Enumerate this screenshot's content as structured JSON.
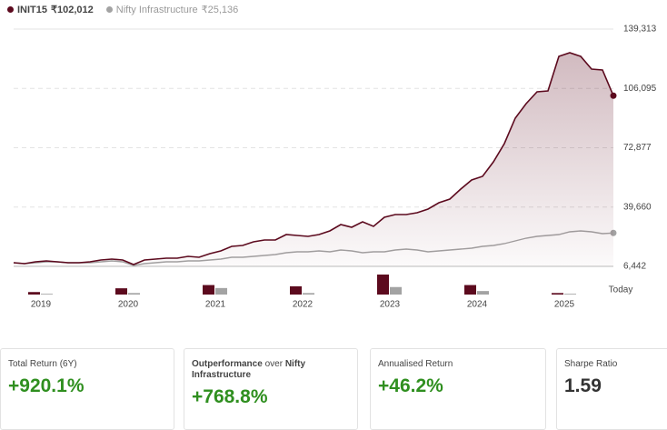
{
  "chart_data": {
    "type": "line",
    "series": [
      {
        "name": "INIT15",
        "value_label": "₹102,012",
        "color": "#5c0a1e",
        "values": [
          8478,
          7969,
          8988,
          9497,
          8988,
          8478,
          8478,
          8988,
          10006,
          10515,
          10006,
          7460,
          10006,
          10515,
          11024,
          11024,
          12042,
          11533,
          13569,
          15097,
          17642,
          18151,
          20188,
          21206,
          21206,
          24261,
          23751,
          23242,
          24261,
          26297,
          29861,
          28333,
          31388,
          28842,
          33933,
          35461,
          35461,
          36479,
          38515,
          42079,
          44115,
          49715,
          54806,
          56843,
          64989,
          75170,
          89425,
          97571,
          104189,
          104698,
          124044,
          126080,
          124044,
          116917,
          116408,
          102012
        ],
        "annual_bars": [
          10,
          25,
          38,
          33,
          80,
          38,
          6
        ]
      },
      {
        "name": "Nifty Infrastructure",
        "value_label": "₹25,136",
        "color": "#a3a3a3",
        "values": [
          8478,
          7969,
          8478,
          8988,
          8988,
          8478,
          8478,
          8478,
          8988,
          9497,
          8988,
          6951,
          7969,
          8478,
          8988,
          8988,
          9497,
          9497,
          10006,
          10515,
          11533,
          11533,
          12042,
          12551,
          13060,
          14079,
          14588,
          14588,
          15097,
          14588,
          15606,
          15097,
          14079,
          14588,
          14588,
          15606,
          16115,
          15606,
          14588,
          15097,
          15606,
          16115,
          16624,
          17642,
          18151,
          19170,
          20697,
          22224,
          23242,
          23751,
          24261,
          25788,
          26297,
          25788,
          24770,
          25136
        ],
        "annual_bars": [
          3,
          6,
          26,
          6,
          30,
          14,
          3
        ]
      }
    ],
    "categories": [
      null,
      null,
      null,
      "2019",
      null,
      null,
      null,
      null,
      null,
      null,
      null,
      "2020",
      null,
      null,
      null,
      null,
      null,
      null,
      null,
      "2021",
      null,
      null,
      null,
      null,
      null,
      null,
      null,
      "2022",
      null,
      null,
      null,
      null,
      null,
      null,
      null,
      "2023",
      null,
      null,
      null,
      null,
      null,
      null,
      null,
      "2024",
      null,
      null,
      null,
      null,
      null,
      null,
      null,
      "2025",
      null,
      null,
      null,
      "Today"
    ],
    "bar_categories": [
      "2019",
      "2020",
      "2021",
      "2022",
      "2023",
      "2024",
      "2025"
    ],
    "bar_ylim": [
      0,
      80
    ],
    "ylim": [
      6442,
      139313
    ],
    "yticks": [
      {
        "value": 6442,
        "label": "6,442"
      },
      {
        "value": 39660,
        "label": "39,660"
      },
      {
        "value": 72877,
        "label": "72,877"
      },
      {
        "value": 106095,
        "label": "106,095"
      },
      {
        "value": 139313,
        "label": "139,313"
      }
    ],
    "grid": true
  },
  "cards": [
    {
      "label": "Total Return (6Y)",
      "value": "+920.1%"
    },
    {
      "label_parts": [
        "Outperformance",
        "over",
        "Nifty Infrastructure"
      ],
      "value": "+768.8%"
    },
    {
      "label": "Annualised Return",
      "value": "+46.2%"
    },
    {
      "label": "Sharpe Ratio",
      "value": "1.59"
    }
  ]
}
